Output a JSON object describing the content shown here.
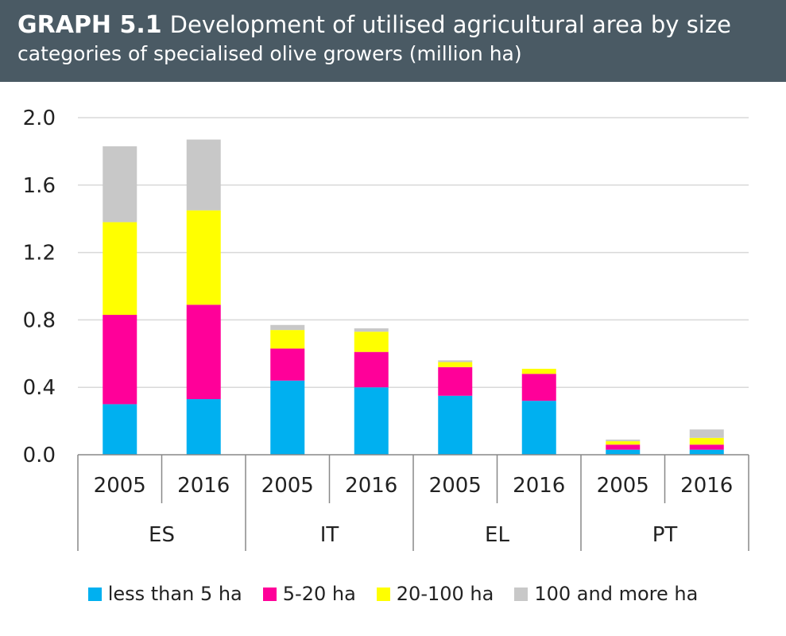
{
  "header": {
    "tag": "GRAPH 5.1",
    "title_part1": "Development of utilised agricultural area by size",
    "title_part2": "categories of specialised olive growers (million ha)"
  },
  "chart_data": {
    "type": "bar",
    "stacked": true,
    "groups": [
      {
        "label": "ES",
        "bars": [
          "2005",
          "2016"
        ]
      },
      {
        "label": "IT",
        "bars": [
          "2005",
          "2016"
        ]
      },
      {
        "label": "EL",
        "bars": [
          "2005",
          "2016"
        ]
      },
      {
        "label": "PT",
        "bars": [
          "2005",
          "2016"
        ]
      }
    ],
    "series": [
      {
        "name": "less than 5 ha",
        "color": "#00b0f0",
        "values": [
          0.3,
          0.33,
          0.44,
          0.4,
          0.35,
          0.32,
          0.03,
          0.03
        ]
      },
      {
        "name": "5-20 ha",
        "color": "#ff0099",
        "values": [
          0.53,
          0.56,
          0.19,
          0.21,
          0.17,
          0.16,
          0.03,
          0.03
        ]
      },
      {
        "name": "20-100 ha",
        "color": "#ffff00",
        "values": [
          0.55,
          0.56,
          0.11,
          0.12,
          0.03,
          0.03,
          0.02,
          0.04
        ]
      },
      {
        "name": "100 and more ha",
        "color": "#c8c8c8",
        "values": [
          0.45,
          0.42,
          0.03,
          0.02,
          0.01,
          0.0,
          0.01,
          0.05
        ]
      }
    ],
    "ylim": [
      0,
      2.0
    ],
    "yticks": [
      "0.0",
      "0.4",
      "0.8",
      "1.2",
      "1.6",
      "2.0"
    ],
    "grid": true,
    "legend_position": "bottom"
  }
}
